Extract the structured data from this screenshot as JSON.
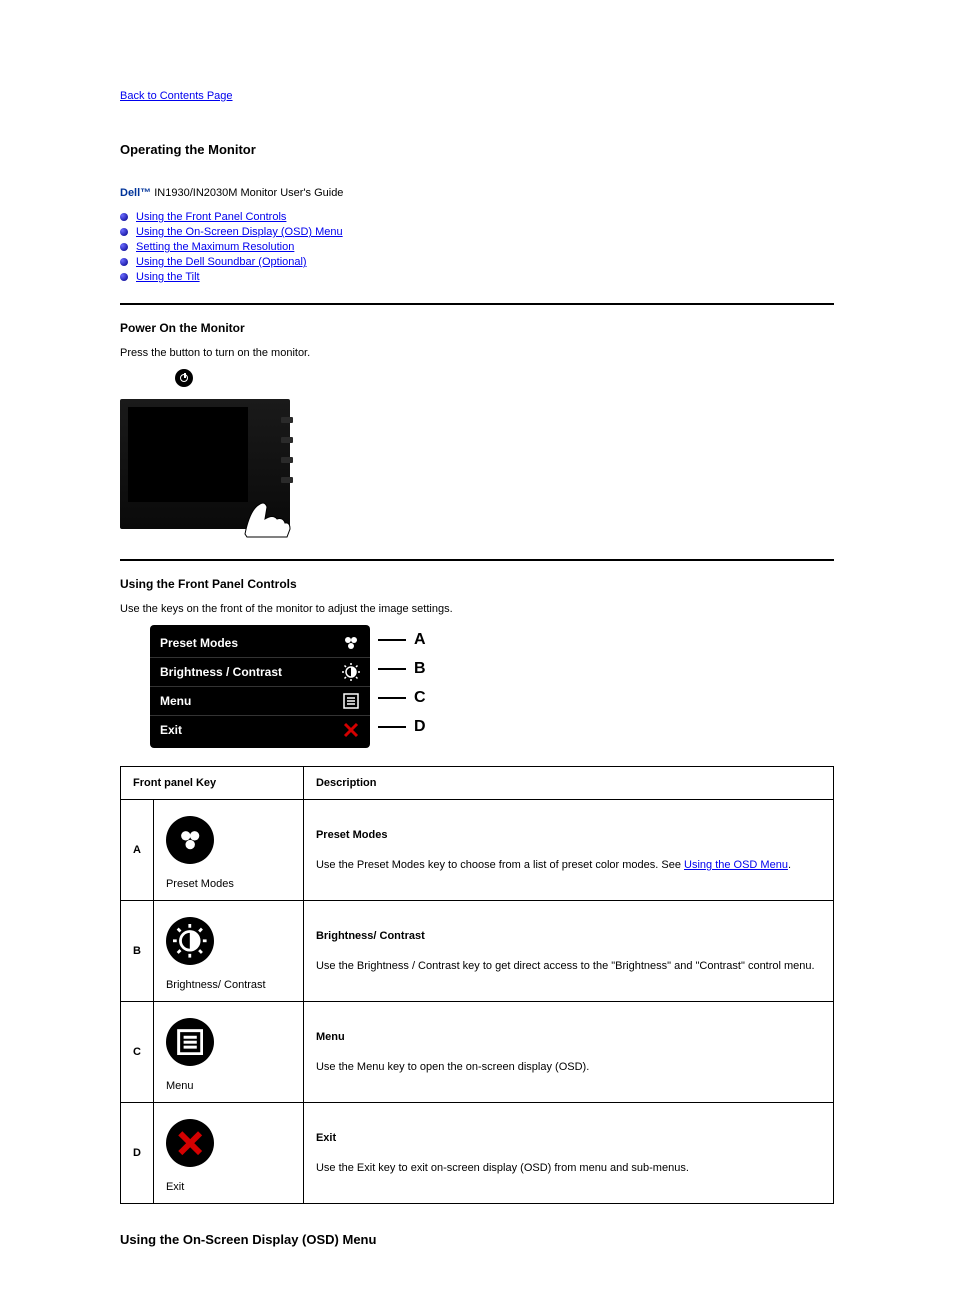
{
  "back_link": "Back to Contents Page",
  "page_title_prefix": "Operating the Monitor",
  "brand": "Dell™",
  "model_suffix": " IN1930/IN2030M Monitor User's Guide",
  "toc": [
    {
      "label": "Using the Front Panel Controls"
    },
    {
      "label": "Using the On-Screen Display (OSD) Menu"
    },
    {
      "label": "Setting the Maximum Resolution"
    },
    {
      "label": "Using the Dell Soundbar (Optional)"
    },
    {
      "label": "Using the Tilt"
    }
  ],
  "section_power": {
    "heading": "Power On the Monitor",
    "instruction": "Press the      button to turn on the monitor."
  },
  "section_front_panel": {
    "heading": "Using the Front Panel Controls",
    "intro": "Use the keys on the front of the monitor to adjust the image settings."
  },
  "osd_items": [
    {
      "label": "Preset Modes",
      "letter": "A",
      "icon": "preset"
    },
    {
      "label": "Brightness / Contrast",
      "letter": "B",
      "icon": "brightness"
    },
    {
      "label": "Menu",
      "letter": "C",
      "icon": "menu"
    },
    {
      "label": "Exit",
      "letter": "D",
      "icon": "exit"
    }
  ],
  "table": {
    "header_control": "Front panel Key",
    "header_desc": "Description",
    "rows": [
      {
        "letter": "A",
        "icon": "preset",
        "name": "Preset Modes",
        "desc_before": "Use the Preset Modes key to choose from a list of preset color modes. See ",
        "desc_link": "Using the OSD Menu",
        "desc_after": "."
      },
      {
        "letter": "B",
        "icon": "brightness",
        "name": "Brightness/ Contrast",
        "desc_before": "Use the Brightness / Contrast key to get direct access to the \"Brightness\" and \"Contrast\" control menu.",
        "desc_link": "",
        "desc_after": ""
      },
      {
        "letter": "C",
        "icon": "menu",
        "name": "Menu",
        "desc_before": "Use the Menu key to open the on-screen display (OSD).",
        "desc_link": "",
        "desc_after": ""
      },
      {
        "letter": "D",
        "icon": "exit",
        "name": "Exit",
        "desc_before": "Use the Exit key to exit on-screen display (OSD) from menu and sub-menus.",
        "desc_link": "",
        "desc_after": ""
      }
    ]
  },
  "osd_heading": "Using the On-Screen Display (OSD) Menu",
  "colors": {
    "link": "#0000ee",
    "brand": "#003399",
    "exit_red": "#d40000",
    "panel_bg": "#000000",
    "panel_text": "#ffffff"
  }
}
